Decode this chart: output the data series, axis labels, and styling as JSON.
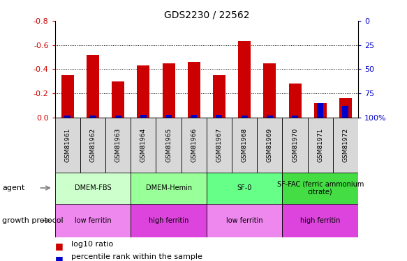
{
  "title": "GDS2230 / 22562",
  "samples": [
    "GSM81961",
    "GSM81962",
    "GSM81963",
    "GSM81964",
    "GSM81965",
    "GSM81966",
    "GSM81967",
    "GSM81968",
    "GSM81969",
    "GSM81970",
    "GSM81971",
    "GSM81972"
  ],
  "log10_ratio": [
    -0.35,
    -0.52,
    -0.3,
    -0.43,
    -0.45,
    -0.46,
    -0.35,
    -0.63,
    -0.45,
    -0.28,
    -0.12,
    -0.16
  ],
  "percentile_rank": [
    2,
    2,
    2,
    3,
    3,
    3,
    3,
    2,
    2,
    2,
    15,
    12
  ],
  "bar_color": "#cc0000",
  "pct_color": "#0000cc",
  "ylim_left": [
    0.0,
    -0.8
  ],
  "ylim_right": [
    100,
    0
  ],
  "yticks_left": [
    0.0,
    -0.2,
    -0.4,
    -0.6,
    -0.8
  ],
  "yticks_right": [
    100,
    75,
    50,
    25,
    0
  ],
  "agent_groups": [
    {
      "label": "DMEM-FBS",
      "start": 0,
      "end": 3,
      "color": "#ccffcc"
    },
    {
      "label": "DMEM-Hemin",
      "start": 3,
      "end": 6,
      "color": "#99ff99"
    },
    {
      "label": "SF-0",
      "start": 6,
      "end": 9,
      "color": "#66ff88"
    },
    {
      "label": "SF-FAC (ferric ammonium\ncitrate)",
      "start": 9,
      "end": 12,
      "color": "#44dd44"
    }
  ],
  "protocol_groups": [
    {
      "label": "low ferritin",
      "start": 0,
      "end": 3,
      "color": "#ee88ee"
    },
    {
      "label": "high ferritin",
      "start": 3,
      "end": 6,
      "color": "#dd44dd"
    },
    {
      "label": "low ferritin",
      "start": 6,
      "end": 9,
      "color": "#ee88ee"
    },
    {
      "label": "high ferritin",
      "start": 9,
      "end": 12,
      "color": "#dd44dd"
    }
  ],
  "agent_row_label": "agent",
  "protocol_row_label": "growth protocol",
  "legend_items": [
    {
      "label": "log10 ratio",
      "color": "#cc0000"
    },
    {
      "label": "percentile rank within the sample",
      "color": "#0000cc"
    }
  ],
  "background_color": "#ffffff",
  "tick_label_color_left": "#cc0000",
  "tick_label_color_right": "#0000cc",
  "bar_width": 0.5,
  "pct_bar_width": 0.25
}
